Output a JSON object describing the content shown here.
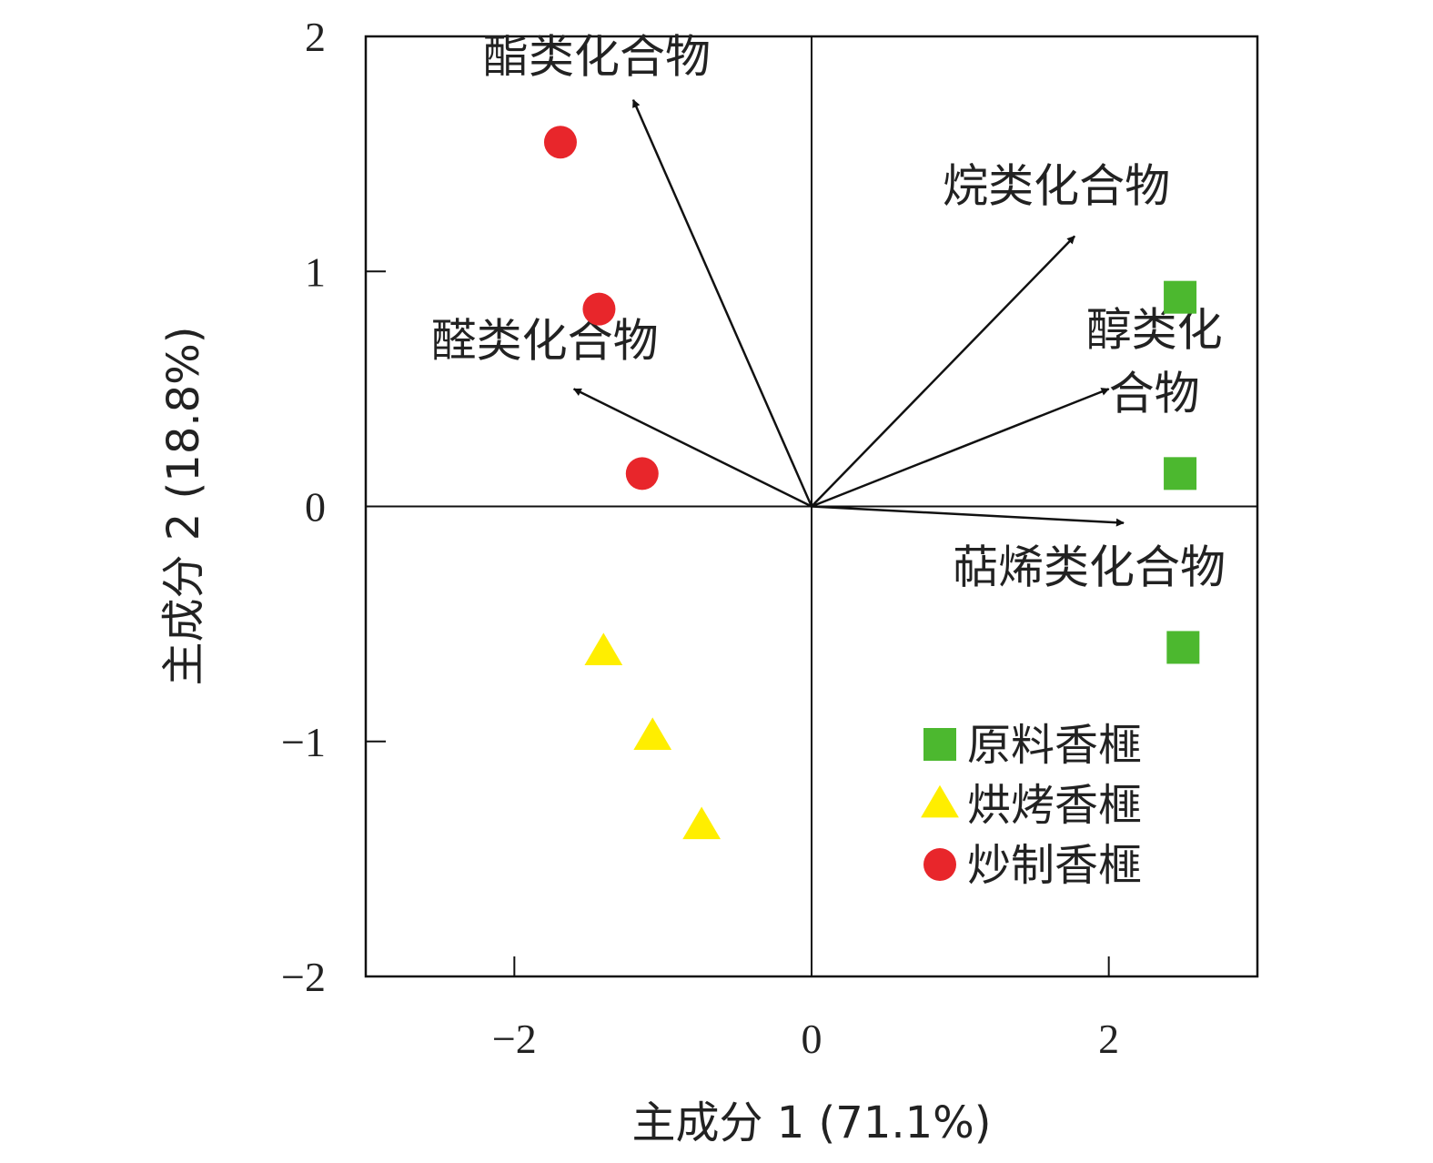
{
  "chart_data": {
    "type": "scatter",
    "title": "",
    "xlabel": "主成分 1 (71.1%)",
    "ylabel": "主成分 2 (18.8%)",
    "xlim": [
      -3,
      3
    ],
    "ylim": [
      -2,
      2
    ],
    "x_ticks": [
      -2,
      0,
      2
    ],
    "y_ticks": [
      -2,
      -1,
      0,
      1,
      2
    ],
    "x_tick_labels": [
      "−2",
      "0",
      "2"
    ],
    "y_tick_labels": [
      "−2",
      "−1",
      "0",
      "1",
      "2"
    ],
    "grid": false,
    "zero_lines": true,
    "legend_position": "bottom-right",
    "series": [
      {
        "name": "原料香榧",
        "marker": "square",
        "color": "#4cb82f",
        "points": [
          [
            2.48,
            0.89
          ],
          [
            2.48,
            0.14
          ],
          [
            2.5,
            -0.6
          ]
        ]
      },
      {
        "name": "烘烤香榧",
        "marker": "triangle",
        "color": "#ffee00",
        "points": [
          [
            -1.4,
            -0.62
          ],
          [
            -1.07,
            -0.98
          ],
          [
            -0.74,
            -1.36
          ]
        ]
      },
      {
        "name": "炒制香榧",
        "marker": "circle",
        "color": "#e8262b",
        "points": [
          [
            -1.69,
            1.55
          ],
          [
            -1.43,
            0.84
          ],
          [
            -1.14,
            0.14
          ]
        ]
      }
    ],
    "loadings": [
      {
        "label": "酯类化合物",
        "x": -1.2,
        "y": 1.73
      },
      {
        "label": "醛类化合物",
        "x": -1.6,
        "y": 0.5
      },
      {
        "label": "烷类化合物",
        "x": 1.77,
        "y": 1.15
      },
      {
        "label": "醇类化合物",
        "x": 2.0,
        "y": 0.5
      },
      {
        "label": "萜烯类化合物",
        "x": 2.1,
        "y": -0.07
      }
    ]
  }
}
